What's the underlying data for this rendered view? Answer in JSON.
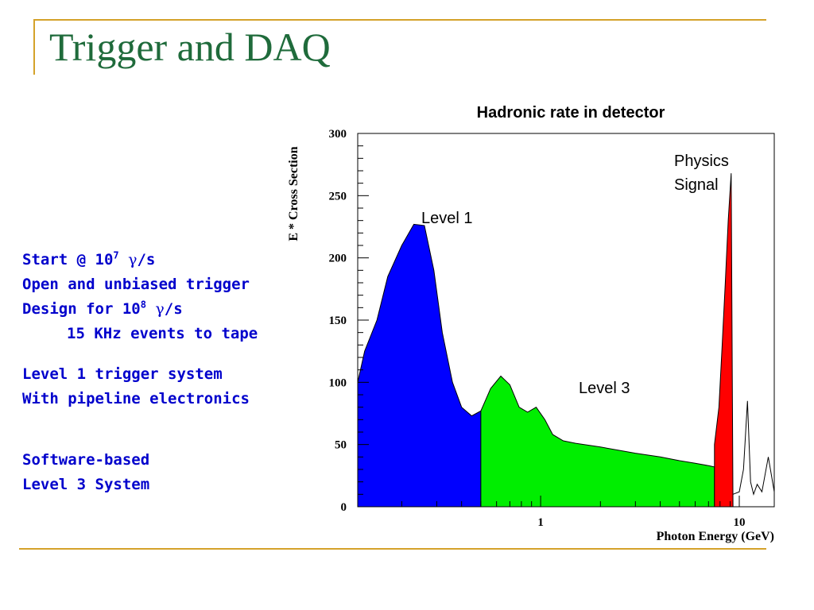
{
  "slide": {
    "title": "Trigger and DAQ",
    "bullets": {
      "start_prefix": "Start @ 10",
      "start_exp": "7",
      "start_greek": "γ",
      "start_suffix": "/s",
      "open_trigger": "Open and unbiased trigger",
      "design_prefix": "Design for 10",
      "design_exp": "8",
      "design_greek": "γ",
      "design_suffix": "/s",
      "events_to_tape": "15 KHz events to tape",
      "level1_system": "Level 1 trigger system",
      "pipeline": "With pipeline electronics",
      "software": "Software-based",
      "level3_system": "Level 3 System"
    }
  },
  "chart_data": {
    "type": "area",
    "title": "Hadronic rate in detector",
    "xlabel": "Photon Energy (GeV)",
    "ylabel": "E * Cross Section",
    "x_scale": "log",
    "xlim": [
      0.12,
      15
    ],
    "ylim": [
      0,
      300
    ],
    "y_ticks": [
      0,
      50,
      100,
      150,
      200,
      250,
      300
    ],
    "x_ticks": [
      1,
      10
    ],
    "x_tick_labels": [
      "1",
      "10"
    ],
    "grid": false,
    "legend": "none",
    "colors": {
      "level1": "#0000ff",
      "level3": "#00ee00",
      "signal": "#ff0000"
    },
    "annotations": {
      "level1": "Level 1",
      "level3": "Level 3",
      "signal_line1": "Physics",
      "signal_line2": "Signal"
    },
    "series": [
      {
        "name": "Level 1",
        "x": [
          0.12,
          0.13,
          0.15,
          0.17,
          0.2,
          0.23,
          0.26,
          0.29,
          0.32,
          0.36,
          0.4,
          0.45,
          0.5
        ],
        "y": [
          100,
          125,
          150,
          185,
          210,
          227,
          226,
          190,
          140,
          100,
          80,
          73,
          77
        ]
      },
      {
        "name": "Level 3",
        "x": [
          0.5,
          0.56,
          0.63,
          0.7,
          0.78,
          0.86,
          0.95,
          1.05,
          1.15,
          1.3,
          1.5,
          2,
          3,
          4,
          5,
          6,
          7,
          7.5
        ],
        "y": [
          77,
          95,
          105,
          98,
          80,
          76,
          80,
          70,
          58,
          53,
          51,
          48,
          43,
          40,
          37,
          35,
          33,
          32
        ]
      },
      {
        "name": "Physics Signal",
        "x": [
          7.5,
          7.9,
          8.2,
          8.5,
          8.8,
          9.1,
          9.3
        ],
        "y": [
          50,
          80,
          130,
          180,
          230,
          268,
          0
        ]
      },
      {
        "name": "tail",
        "x": [
          9.3,
          10.0,
          10.5,
          11.0,
          11.4,
          11.8,
          12.3,
          13.0,
          14.0,
          15.0
        ],
        "y": [
          10,
          12,
          30,
          85,
          20,
          10,
          18,
          12,
          40,
          12
        ]
      }
    ]
  }
}
